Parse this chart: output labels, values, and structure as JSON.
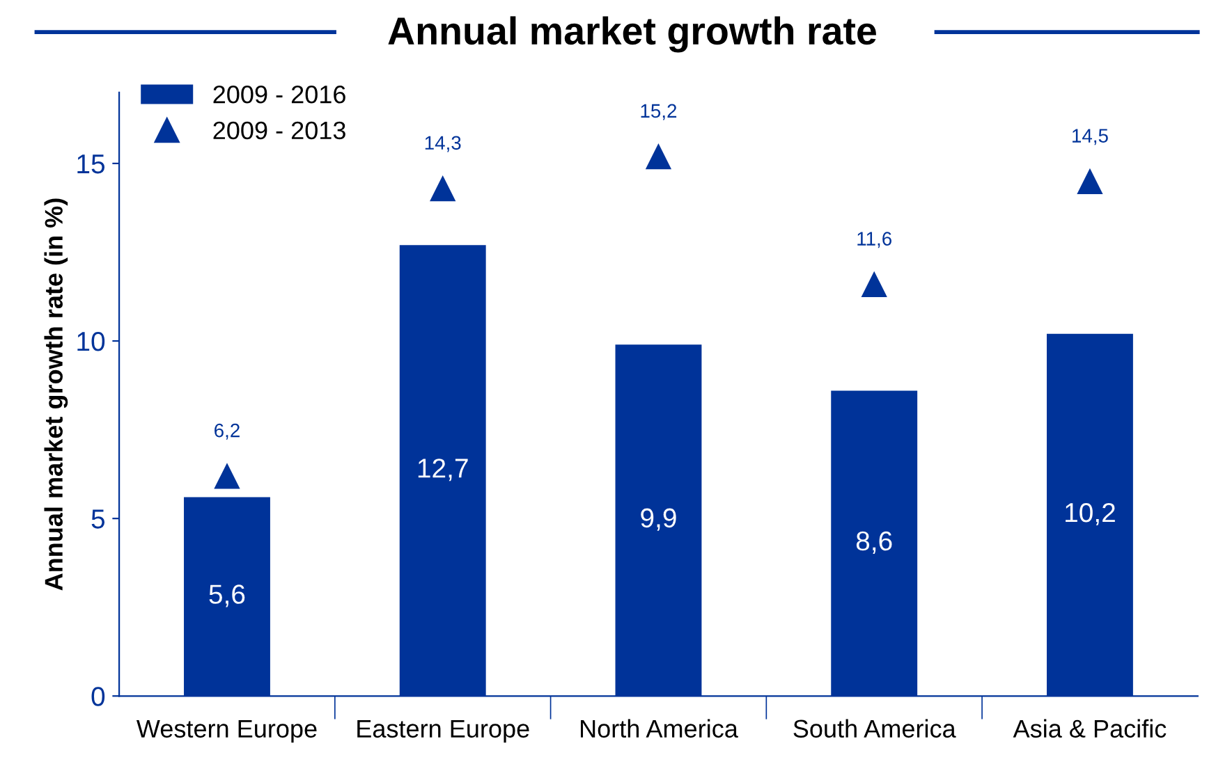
{
  "chart_data": {
    "type": "bar",
    "title": "Annual market growth rate",
    "ylabel": "Annual market growth rate (in %)",
    "categories": [
      "Western Europe",
      "Eastern Europe",
      "North America",
      "South America",
      "Asia & Pacific"
    ],
    "series": [
      {
        "name": "2009 - 2016",
        "color": "#003399",
        "values": [
          5.6,
          12.7,
          9.9,
          8.6,
          10.2
        ],
        "value_labels": [
          "5,6",
          "12,7",
          "9,9",
          "8,6",
          "10,2"
        ]
      },
      {
        "name": "2009 - 2013",
        "type": "scatter",
        "marker": "triangle",
        "color": "#003399",
        "values": [
          6.2,
          14.3,
          15.2,
          11.6,
          14.5
        ],
        "value_labels": [
          "6,2",
          "14,3",
          "15,2",
          "11,6",
          "14,5"
        ]
      }
    ],
    "ylim": [
      0,
      17
    ],
    "yticks": [
      0,
      5,
      10,
      15
    ],
    "grid": false,
    "legend": "top left"
  }
}
